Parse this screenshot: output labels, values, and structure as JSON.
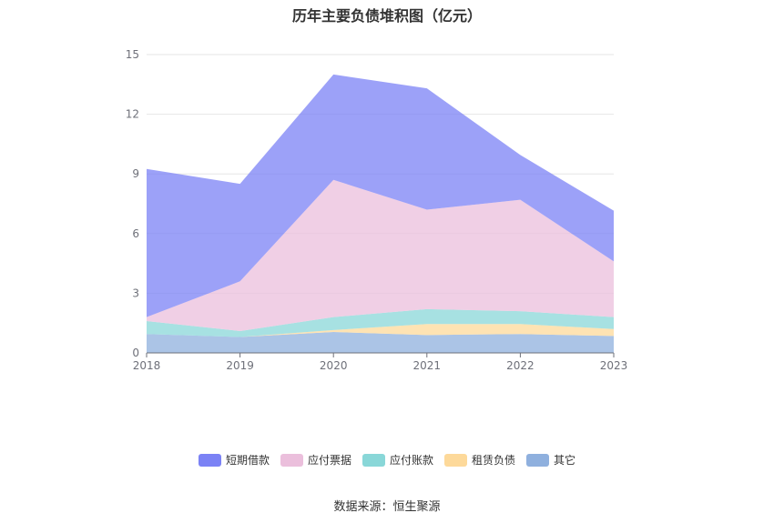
{
  "chart_data": {
    "type": "area",
    "stacked": true,
    "title": "历年主要负债堆积图（亿元）",
    "xlabel": "",
    "ylabel": "",
    "categories": [
      "2018",
      "2019",
      "2020",
      "2021",
      "2022",
      "2023"
    ],
    "ylim": [
      0,
      15
    ],
    "yticks": [
      0,
      3,
      6,
      9,
      12,
      15
    ],
    "grid": true,
    "legend_position": "bottom",
    "series": [
      {
        "name": "其它",
        "color": "#8fb0de",
        "values": [
          0.95,
          0.8,
          1.05,
          0.9,
          0.95,
          0.85
        ]
      },
      {
        "name": "租赁负债",
        "color": "#fdd99a",
        "values": [
          0.0,
          0.0,
          0.1,
          0.55,
          0.5,
          0.35
        ]
      },
      {
        "name": "应付账款",
        "color": "#89d7d8",
        "values": [
          0.65,
          0.3,
          0.65,
          0.75,
          0.65,
          0.6
        ]
      },
      {
        "name": "应付票据",
        "color": "#ebbfdc",
        "values": [
          0.2,
          2.5,
          6.9,
          5.0,
          5.6,
          2.8
        ]
      },
      {
        "name": "短期借款",
        "color": "#7b82f5",
        "values": [
          7.45,
          4.9,
          5.3,
          6.1,
          2.25,
          2.55
        ]
      }
    ],
    "legend_order": [
      "短期借款",
      "应付票据",
      "应付账款",
      "租赁负债",
      "其它"
    ]
  },
  "source": "数据来源：恒生聚源"
}
